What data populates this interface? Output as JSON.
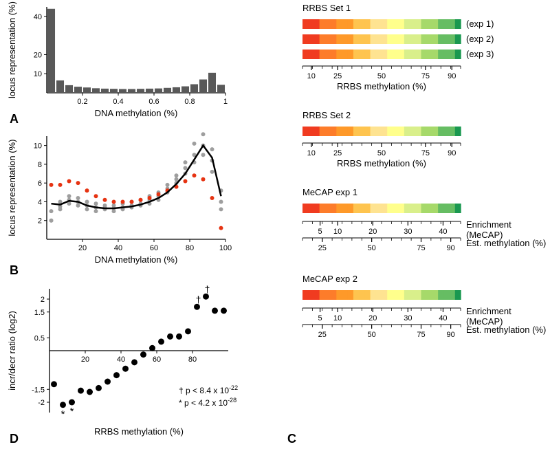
{
  "palette": {
    "bg": "#ffffff",
    "axis": "#000000",
    "bar": "#595959",
    "line": "#000000",
    "gray_dot": "#9e9e9e",
    "red_dot": "#e63312",
    "black_dot": "#000000",
    "text": "#000000"
  },
  "heatmap_colors": [
    "#f03b20",
    "#fd7c2a",
    "#fe9929",
    "#fec44f",
    "#fee391",
    "#ffff8c",
    "#d9ef8b",
    "#a6d96a",
    "#66bd63",
    "#1a9850"
  ],
  "panelA": {
    "label": "A",
    "type": "histogram",
    "xlabel": "DNA methylation (%)",
    "ylabel": "locus representation (%)",
    "x_ticks": [
      "0.2",
      "0.4",
      "0.6",
      "0.8",
      "1"
    ],
    "x_tick_vals": [
      0.2,
      0.4,
      0.6,
      0.8,
      1.0
    ],
    "y_ticks": [
      "10",
      "20",
      "40"
    ],
    "y_tick_vals": [
      10,
      20,
      40
    ],
    "xlim": [
      0,
      1
    ],
    "ylim": [
      0,
      45
    ],
    "bins": [
      44.0,
      6.5,
      4.0,
      3.2,
      2.8,
      2.4,
      2.2,
      2.1,
      2.0,
      2.0,
      2.1,
      2.2,
      2.3,
      2.6,
      2.9,
      3.4,
      4.5,
      7.0,
      10.5,
      4.2
    ],
    "bar_color": "#595959"
  },
  "panelB": {
    "label": "B",
    "type": "scatter_line",
    "xlabel": "DNA methylation (%)",
    "ylabel": "locus representation (%)",
    "x_ticks": [
      "20",
      "40",
      "60",
      "80",
      "100"
    ],
    "x_tick_vals": [
      20,
      40,
      60,
      80,
      100
    ],
    "y_ticks": [
      "2",
      "4",
      "6",
      "8",
      "10"
    ],
    "y_tick_vals": [
      2,
      4,
      6,
      8,
      10
    ],
    "xlim": [
      0,
      100
    ],
    "ylim": [
      0,
      11
    ],
    "line_x": [
      2.5,
      7.5,
      12.5,
      17.5,
      22.5,
      27.5,
      32.5,
      37.5,
      42.5,
      47.5,
      52.5,
      57.5,
      62.5,
      67.5,
      72.5,
      77.5,
      82.5,
      87.5,
      92.5,
      97.5
    ],
    "line_y": [
      3.8,
      3.7,
      4.1,
      4.0,
      3.6,
      3.4,
      3.3,
      3.3,
      3.4,
      3.5,
      3.7,
      4.0,
      4.4,
      5.0,
      5.9,
      7.0,
      8.5,
      10.0,
      8.7,
      4.6
    ],
    "line_color": "#000000",
    "line_width": 2.5,
    "gray_series": [
      {
        "x": 2.5,
        "y": 2.0
      },
      {
        "x": 2.5,
        "y": 3.0
      },
      {
        "x": 2.5,
        "y": 2.0
      },
      {
        "x": 7.5,
        "y": 3.5
      },
      {
        "x": 7.5,
        "y": 4.0
      },
      {
        "x": 7.5,
        "y": 3.2
      },
      {
        "x": 12.5,
        "y": 4.2
      },
      {
        "x": 12.5,
        "y": 4.6
      },
      {
        "x": 12.5,
        "y": 3.8
      },
      {
        "x": 17.5,
        "y": 4.0
      },
      {
        "x": 17.5,
        "y": 4.4
      },
      {
        "x": 17.5,
        "y": 3.6
      },
      {
        "x": 22.5,
        "y": 3.6
      },
      {
        "x": 22.5,
        "y": 4.0
      },
      {
        "x": 22.5,
        "y": 3.2
      },
      {
        "x": 27.5,
        "y": 3.4
      },
      {
        "x": 27.5,
        "y": 3.8
      },
      {
        "x": 27.5,
        "y": 3.0
      },
      {
        "x": 32.5,
        "y": 3.4
      },
      {
        "x": 32.5,
        "y": 3.6
      },
      {
        "x": 32.5,
        "y": 3.2
      },
      {
        "x": 37.5,
        "y": 3.3
      },
      {
        "x": 37.5,
        "y": 3.6
      },
      {
        "x": 37.5,
        "y": 3.0
      },
      {
        "x": 42.5,
        "y": 3.4
      },
      {
        "x": 42.5,
        "y": 3.8
      },
      {
        "x": 42.5,
        "y": 3.2
      },
      {
        "x": 47.5,
        "y": 3.6
      },
      {
        "x": 47.5,
        "y": 4.0
      },
      {
        "x": 47.5,
        "y": 3.4
      },
      {
        "x": 52.5,
        "y": 3.8
      },
      {
        "x": 52.5,
        "y": 4.2
      },
      {
        "x": 52.5,
        "y": 3.6
      },
      {
        "x": 57.5,
        "y": 4.2
      },
      {
        "x": 57.5,
        "y": 4.6
      },
      {
        "x": 57.5,
        "y": 3.8
      },
      {
        "x": 62.5,
        "y": 4.6
      },
      {
        "x": 62.5,
        "y": 5.0
      },
      {
        "x": 62.5,
        "y": 4.2
      },
      {
        "x": 67.5,
        "y": 5.4
      },
      {
        "x": 67.5,
        "y": 5.8
      },
      {
        "x": 67.5,
        "y": 5.0
      },
      {
        "x": 72.5,
        "y": 6.4
      },
      {
        "x": 72.5,
        "y": 6.8
      },
      {
        "x": 72.5,
        "y": 6.0
      },
      {
        "x": 77.5,
        "y": 7.6
      },
      {
        "x": 77.5,
        "y": 8.2
      },
      {
        "x": 77.5,
        "y": 7.0
      },
      {
        "x": 82.5,
        "y": 9.0
      },
      {
        "x": 82.5,
        "y": 10.2
      },
      {
        "x": 82.5,
        "y": 8.2
      },
      {
        "x": 87.5,
        "y": 10.0
      },
      {
        "x": 87.5,
        "y": 11.2
      },
      {
        "x": 87.5,
        "y": 9.0
      },
      {
        "x": 92.5,
        "y": 8.4
      },
      {
        "x": 92.5,
        "y": 9.6
      },
      {
        "x": 92.5,
        "y": 7.2
      },
      {
        "x": 97.5,
        "y": 4.0
      },
      {
        "x": 97.5,
        "y": 5.2
      },
      {
        "x": 97.5,
        "y": 3.2
      }
    ],
    "red_series": [
      {
        "x": 2.5,
        "y": 5.8
      },
      {
        "x": 7.5,
        "y": 5.8
      },
      {
        "x": 12.5,
        "y": 6.2
      },
      {
        "x": 17.5,
        "y": 6.0
      },
      {
        "x": 22.5,
        "y": 5.2
      },
      {
        "x": 27.5,
        "y": 4.6
      },
      {
        "x": 32.5,
        "y": 4.2
      },
      {
        "x": 37.5,
        "y": 4.0
      },
      {
        "x": 42.5,
        "y": 4.0
      },
      {
        "x": 47.5,
        "y": 4.0
      },
      {
        "x": 52.5,
        "y": 4.2
      },
      {
        "x": 57.5,
        "y": 4.4
      },
      {
        "x": 62.5,
        "y": 4.8
      },
      {
        "x": 67.5,
        "y": 5.2
      },
      {
        "x": 72.5,
        "y": 5.6
      },
      {
        "x": 77.5,
        "y": 6.2
      },
      {
        "x": 82.5,
        "y": 6.8
      },
      {
        "x": 87.5,
        "y": 6.4
      },
      {
        "x": 92.5,
        "y": 4.4
      },
      {
        "x": 97.5,
        "y": 1.2
      }
    ],
    "gray_dot_color": "#9e9e9e",
    "red_dot_color": "#e63312",
    "dot_radius": 3
  },
  "panelC": {
    "label": "C",
    "sets": [
      {
        "heading": "RRBS Set 1",
        "strips": [
          {
            "label": "(exp 1)"
          },
          {
            "label": "(exp 2)"
          },
          {
            "label": "(exp 3)"
          }
        ],
        "axis": {
          "label": "RRBS methylation (%)",
          "ticks": [
            "10",
            "25",
            "50",
            "75",
            "90"
          ],
          "tick_vals": [
            10,
            25,
            50,
            75,
            90
          ],
          "range": [
            5,
            95
          ]
        }
      },
      {
        "heading": "RRBS Set 2",
        "strips": [
          {
            "label": ""
          }
        ],
        "axis": {
          "label": "RRBS methylation (%)",
          "ticks": [
            "10",
            "25",
            "50",
            "75",
            "90"
          ],
          "tick_vals": [
            10,
            25,
            50,
            75,
            90
          ],
          "range": [
            5,
            95
          ]
        }
      },
      {
        "heading": "MeCAP exp 1",
        "strips": [
          {
            "label": ""
          }
        ],
        "dual_axis": {
          "top": {
            "label": "Enrichment",
            "sublabel": "(MeCAP)",
            "ticks": [
              "5",
              "10",
              "20",
              "30",
              "40"
            ],
            "tick_vals": [
              5,
              10,
              20,
              30,
              40
            ],
            "range": [
              0,
              45
            ]
          },
          "bottom": {
            "label": "Est. methylation (%)",
            "ticks": [
              "25",
              "50",
              "75",
              "90"
            ],
            "tick_vals": [
              25,
              50,
              75,
              90
            ],
            "range": [
              15,
              95
            ]
          }
        }
      },
      {
        "heading": "MeCAP exp 2",
        "strips": [
          {
            "label": ""
          }
        ],
        "dual_axis": {
          "top": {
            "label": "Enrichment",
            "sublabel": "(MeCAP)",
            "ticks": [
              "5",
              "10",
              "20",
              "30",
              "40"
            ],
            "tick_vals": [
              5,
              10,
              20,
              30,
              40
            ],
            "range": [
              0,
              45
            ]
          },
          "bottom": {
            "label": "Est. methylation (%)",
            "ticks": [
              "25",
              "50",
              "75",
              "90"
            ],
            "tick_vals": [
              25,
              50,
              75,
              90
            ],
            "range": [
              15,
              95
            ]
          }
        }
      }
    ],
    "strip_width": 230,
    "strip_height": 14
  },
  "panelD": {
    "label": "D",
    "type": "scatter",
    "xlabel": "RRBS methylation (%)",
    "ylabel": "incr/decr ratio (log2)",
    "x_ticks": [
      "20",
      "40",
      "60",
      "80"
    ],
    "x_tick_vals": [
      20,
      40,
      60,
      80
    ],
    "y_ticks": [
      "-2",
      "-1.5",
      "0.5",
      "1.5",
      "2"
    ],
    "y_tick_vals": [
      -2,
      -1.5,
      0.5,
      1.5,
      2
    ],
    "xlim": [
      0,
      100
    ],
    "ylim": [
      -2.4,
      2.4
    ],
    "points": [
      {
        "x": 2.5,
        "y": -1.3,
        "mark": null
      },
      {
        "x": 7.5,
        "y": -2.1,
        "mark": "star"
      },
      {
        "x": 12.5,
        "y": -2.0,
        "mark": "star"
      },
      {
        "x": 17.5,
        "y": -1.55,
        "mark": null
      },
      {
        "x": 22.5,
        "y": -1.6,
        "mark": null
      },
      {
        "x": 27.5,
        "y": -1.45,
        "mark": null
      },
      {
        "x": 32.5,
        "y": -1.2,
        "mark": null
      },
      {
        "x": 37.5,
        "y": -0.95,
        "mark": null
      },
      {
        "x": 42.5,
        "y": -0.7,
        "mark": null
      },
      {
        "x": 47.5,
        "y": -0.45,
        "mark": null
      },
      {
        "x": 52.5,
        "y": -0.15,
        "mark": null
      },
      {
        "x": 57.5,
        "y": 0.1,
        "mark": null
      },
      {
        "x": 62.5,
        "y": 0.35,
        "mark": null
      },
      {
        "x": 67.5,
        "y": 0.55,
        "mark": null
      },
      {
        "x": 72.5,
        "y": 0.55,
        "mark": null
      },
      {
        "x": 77.5,
        "y": 0.75,
        "mark": null
      },
      {
        "x": 82.5,
        "y": 1.7,
        "mark": "dagger"
      },
      {
        "x": 87.5,
        "y": 2.1,
        "mark": "dagger"
      },
      {
        "x": 92.5,
        "y": 1.55,
        "mark": null
      },
      {
        "x": 97.5,
        "y": 1.55,
        "mark": null
      }
    ],
    "dot_radius": 4.5,
    "dot_color": "#000000",
    "legend": {
      "dagger": "p < 8.4 x 10",
      "dagger_exp": "-22",
      "star": "p < 4.2 x 10",
      "star_exp": "-28",
      "dagger_symbol": "†",
      "star_symbol": "*"
    }
  }
}
